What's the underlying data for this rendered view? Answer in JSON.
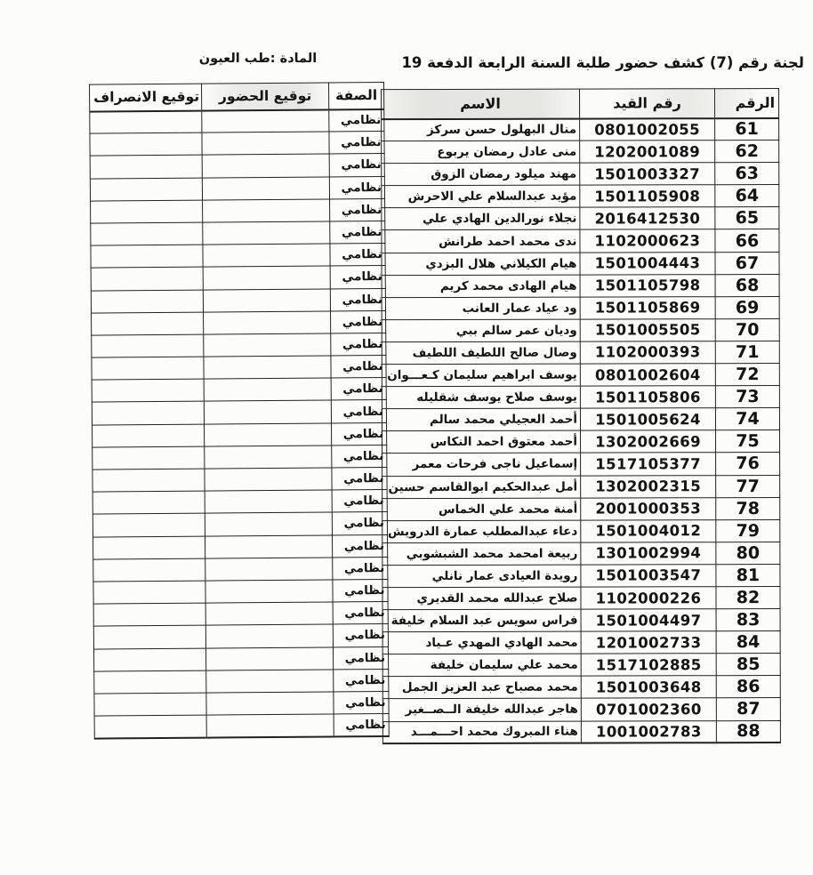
{
  "page": {
    "title_main": "لجنة رقم (7) كشف حضور طلبة السنة الرابعة  الدفعة 19",
    "title_subject": "المادة :طب العيون"
  },
  "colors": {
    "ink": "#141414",
    "paper": "#fcfcfb",
    "header_shade": "#e6e6e3"
  },
  "table": {
    "headers": {
      "number": "الرقم",
      "reg_no": "رقم القيد",
      "name": "الاسم",
      "status": "الصفة",
      "attendance_sig": "توقيع الحضور",
      "departure_sig": "توقيع الانصراف"
    },
    "rows": [
      {
        "number": "61",
        "reg_no": "0801002055",
        "name": "منال البهلول حسن سركز",
        "status": "نظامي",
        "attendance_sig": "",
        "departure_sig": ""
      },
      {
        "number": "62",
        "reg_no": "1202001089",
        "name": "منى عادل رمضان يربوع",
        "status": "نظامي",
        "attendance_sig": "",
        "departure_sig": ""
      },
      {
        "number": "63",
        "reg_no": "1501003327",
        "name": "مهند ميلود رمضان الزوق",
        "status": "نظامي",
        "attendance_sig": "",
        "departure_sig": ""
      },
      {
        "number": "64",
        "reg_no": "1501105908",
        "name": "مؤيد عبدالسلام علي  الاحرش",
        "status": "نظامي",
        "attendance_sig": "",
        "departure_sig": ""
      },
      {
        "number": "65",
        "reg_no": "2016412530",
        "name": "نجلاء نورالدين الهادي  علي",
        "status": "نظامي",
        "attendance_sig": "",
        "departure_sig": ""
      },
      {
        "number": "66",
        "reg_no": "1102000623",
        "name": "ندى محمد احمد طرانش",
        "status": "نظامي",
        "attendance_sig": "",
        "departure_sig": ""
      },
      {
        "number": "67",
        "reg_no": "1501004443",
        "name": "هيام الكيلاني هلال  البزدي",
        "status": "نظامي",
        "attendance_sig": "",
        "departure_sig": ""
      },
      {
        "number": "68",
        "reg_no": "1501105798",
        "name": "هيام الهادى محمد  كريم",
        "status": "نظامي",
        "attendance_sig": "",
        "departure_sig": ""
      },
      {
        "number": "69",
        "reg_no": "1501105869",
        "name": "ود عياد عمار  العانب",
        "status": "نظامي",
        "attendance_sig": "",
        "departure_sig": ""
      },
      {
        "number": "70",
        "reg_no": "1501005505",
        "name": "وديان عمر سالم  ببي",
        "status": "نظامي",
        "attendance_sig": "",
        "departure_sig": ""
      },
      {
        "number": "71",
        "reg_no": "1102000393",
        "name": "وصال صالح اللطيف اللطيف",
        "status": "نظامي",
        "attendance_sig": "",
        "departure_sig": ""
      },
      {
        "number": "72",
        "reg_no": "0801002604",
        "name": "يوسف ابراهيم سليمان  كـعـــوان",
        "status": "نظامي",
        "attendance_sig": "",
        "departure_sig": ""
      },
      {
        "number": "73",
        "reg_no": "1501105806",
        "name": "يوسف صلاح يوسف  شقليله",
        "status": "نظامي",
        "attendance_sig": "",
        "departure_sig": ""
      },
      {
        "number": "74",
        "reg_no": "1501005624",
        "name": "أحمد العجيلي محمد سالم",
        "status": "نظامي",
        "attendance_sig": "",
        "departure_sig": ""
      },
      {
        "number": "75",
        "reg_no": "1302002669",
        "name": "أحمد معتوق احمد  النكاس",
        "status": "نظامي",
        "attendance_sig": "",
        "departure_sig": ""
      },
      {
        "number": "76",
        "reg_no": "1517105377",
        "name": "إسماعيل ناجى فرحات  معمر",
        "status": "نظامي",
        "attendance_sig": "",
        "departure_sig": ""
      },
      {
        "number": "77",
        "reg_no": "1302002315",
        "name": "أمل عبدالحكيم ابوالقاسم  حسين",
        "status": "نظامي",
        "attendance_sig": "",
        "departure_sig": ""
      },
      {
        "number": "78",
        "reg_no": "2001000353",
        "name": "أمنة محمد علي الخماس",
        "status": "نظامي",
        "attendance_sig": "",
        "departure_sig": ""
      },
      {
        "number": "79",
        "reg_no": "1501004012",
        "name": "دعاء عبدالمطلب عمارة  الدرويش",
        "status": "نظامي",
        "attendance_sig": "",
        "departure_sig": ""
      },
      {
        "number": "80",
        "reg_no": "1301002994",
        "name": "ربيعة امحمد محمد الشبشوبي",
        "status": "نظامي",
        "attendance_sig": "",
        "departure_sig": ""
      },
      {
        "number": "81",
        "reg_no": "1501003547",
        "name": "رويدة العيادى عمار نانلي",
        "status": "نظامي",
        "attendance_sig": "",
        "departure_sig": ""
      },
      {
        "number": "82",
        "reg_no": "1102000226",
        "name": "صلاح عبدالله محمد القديري",
        "status": "نظامي",
        "attendance_sig": "",
        "departure_sig": ""
      },
      {
        "number": "83",
        "reg_no": "1501004497",
        "name": "فراس سويس عبد السلام  خليفة",
        "status": "نظامي",
        "attendance_sig": "",
        "departure_sig": ""
      },
      {
        "number": "84",
        "reg_no": "1201002733",
        "name": "محمد الهادي المهدي عـياد",
        "status": "نظامي",
        "attendance_sig": "",
        "departure_sig": ""
      },
      {
        "number": "85",
        "reg_no": "1517102885",
        "name": "محمد علي سليمان  خليفة",
        "status": "نظامي",
        "attendance_sig": "",
        "departure_sig": ""
      },
      {
        "number": "86",
        "reg_no": "1501003648",
        "name": "محمد مصباح عبد العزيز الجمل",
        "status": "نظامي",
        "attendance_sig": "",
        "departure_sig": ""
      },
      {
        "number": "87",
        "reg_no": "0701002360",
        "name": "هاجر عبدالله خليفة  الــصــغير",
        "status": "نظامي",
        "attendance_sig": "",
        "departure_sig": ""
      },
      {
        "number": "88",
        "reg_no": "1001002783",
        "name": "هناء المبروك محمد احـــمـــد",
        "status": "نظامي",
        "attendance_sig": "",
        "departure_sig": ""
      }
    ]
  }
}
